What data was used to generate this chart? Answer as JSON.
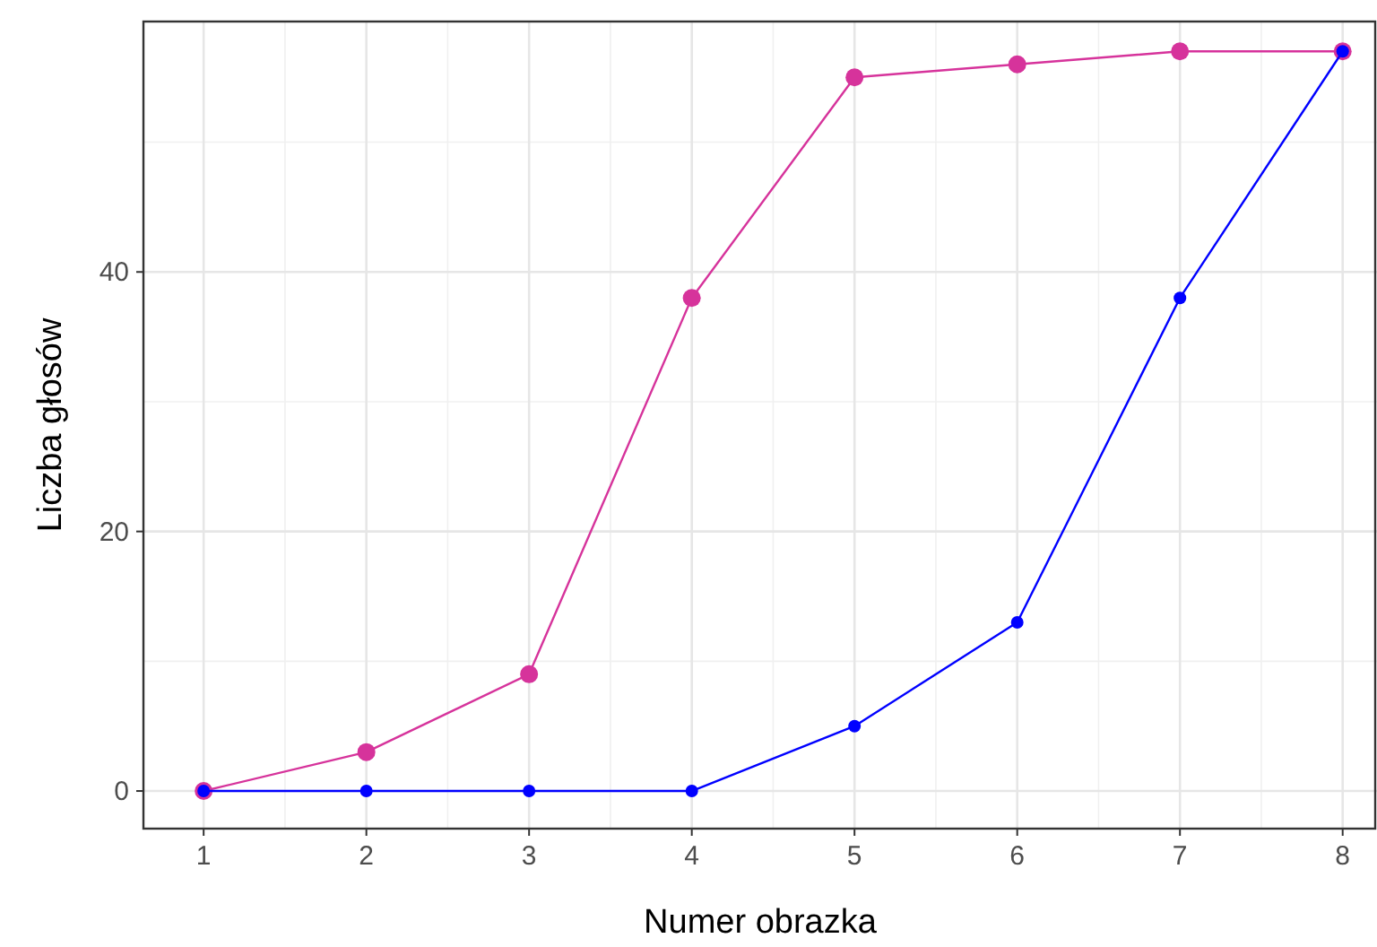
{
  "chart_data": {
    "type": "line",
    "xlabel": "Numer obrazka",
    "ylabel": "Liczba głosów",
    "x": [
      1,
      2,
      3,
      4,
      5,
      6,
      7,
      8
    ],
    "series": [
      {
        "color": "#d6339b",
        "values": [
          0,
          3,
          9,
          38,
          55,
          56,
          57,
          57
        ]
      },
      {
        "color": "#0000ff",
        "values": [
          0,
          0,
          0,
          0,
          5,
          13,
          38,
          57
        ]
      }
    ],
    "xlim": [
      0.63,
      8.2
    ],
    "xticks": [
      1,
      2,
      3,
      4,
      5,
      6,
      7,
      8
    ],
    "ylim": [
      -2.9,
      59.3
    ],
    "yticks": [
      0,
      20,
      40
    ],
    "grid": true,
    "marker": "circle",
    "line_style": "solid"
  }
}
